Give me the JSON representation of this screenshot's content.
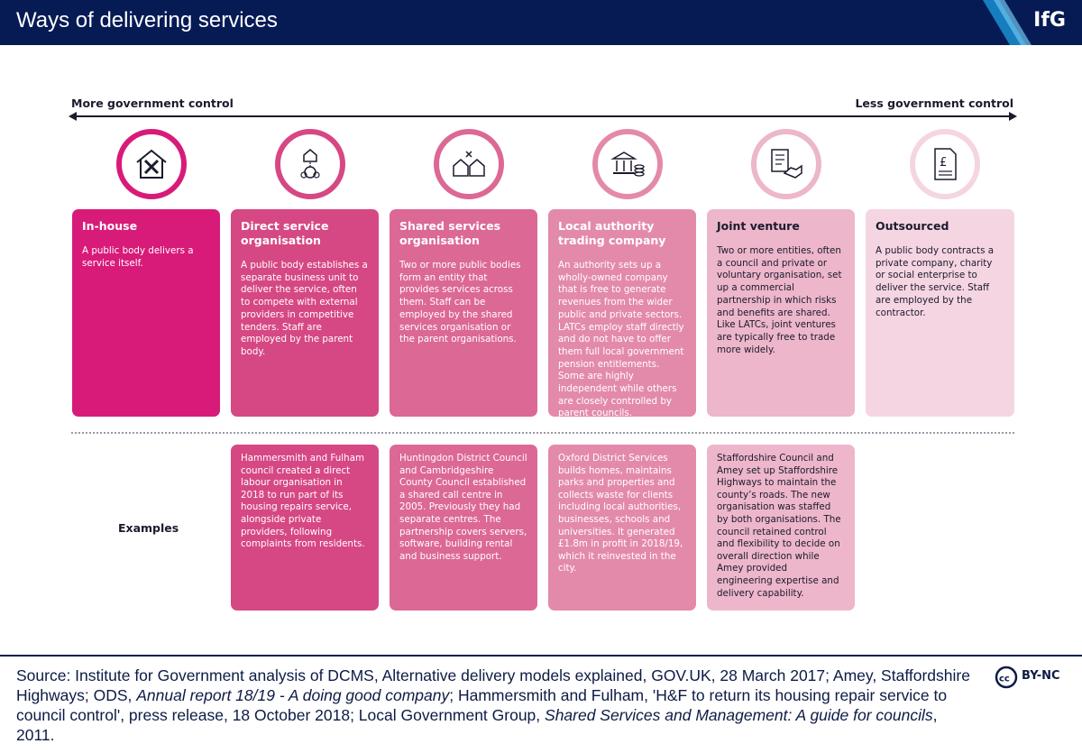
{
  "header": {
    "title": "Ways of delivering services",
    "logo": "IfG"
  },
  "axis": {
    "left_label": "More government control",
    "right_label": "Less government control"
  },
  "colors": {
    "navy": "#061b54",
    "col1": "#d81b79",
    "col2": "#d64883",
    "col3": "#dc6896",
    "col4": "#e38aaa",
    "col5": "#edb6ca",
    "col6": "#f5d5e1"
  },
  "models": [
    {
      "icon": "in-house-tools-icon",
      "title": "In-house",
      "description": "A public body delivers a service itself."
    },
    {
      "icon": "direct-service-organisation-icon",
      "title": "Direct service organisation",
      "description": "A public body establishes a separate business unit to deliver the service, often to compete with external providers in competitive tenders. Staff are employed by the parent body.",
      "example": "Hammersmith and Fulham council created a direct labour organisation in 2018 to run part of its housing repairs service, alongside private providers, following complaints from residents."
    },
    {
      "icon": "shared-services-icon",
      "title": "Shared services organisation",
      "description": "Two or more public bodies form an entity that provides services across them. Staff can be employed by the shared services organisation or the parent organisations.",
      "example": "Huntingdon District Council and Cambridgeshire County Council established a shared call centre in 2005. Previously they had separate centres. The partnership covers servers, software, building rental and business support."
    },
    {
      "icon": "trading-company-bank-coins-icon",
      "title": "Local authority trading company",
      "description": "An authority sets up a wholly-owned company that is free to generate revenues from the wider public and private sectors. LATCs employ staff directly and do not have to offer them full local government pension entitlements. Some are highly independent while others are closely controlled by parent councils.",
      "example": "Oxford District Services builds homes, maintains parks and properties and collects waste for clients including local authorities, businesses, schools and universities. It generated £1.8m in profit in 2018/19, which it reinvested in the city."
    },
    {
      "icon": "joint-venture-handshake-icon",
      "title": "Joint venture",
      "description": "Two or more entities, often a council and private or voluntary organisation, set up a commercial partnership in which risks and benefits are shared. Like LATCs, joint ventures are typically free to trade more widely.",
      "example": "Staffordshire Council and Amey set up Staffordshire Highways to maintain the county’s roads. The new organisation was staffed by both organisations. The council retained control and flexibility to decide on overall direction while Amey provided engineering expertise and delivery capability."
    },
    {
      "icon": "outsourced-contract-icon",
      "title": "Outsourced",
      "description": "A public body contracts a private company, charity or social enterprise to deliver the service. Staff are employed by the contractor."
    }
  ],
  "examples_label": "Examples",
  "source": {
    "prefix": "Source: Institute for Government analysis of DCMS, Alternative delivery models explained, GOV.UK, 28 March 2017; Amey, Staffordshire Highways; ODS, ",
    "italic1": "Annual report 18/19 - A doing good company",
    "middle": "; Hammersmith and Fulham, 'H&F to return its housing repair service to council control', press release, 18 October 2018; Local Government Group, ",
    "italic2": "Shared Services and Management: A guide for councils",
    "suffix": ", 2011."
  },
  "license": "BY-NC"
}
